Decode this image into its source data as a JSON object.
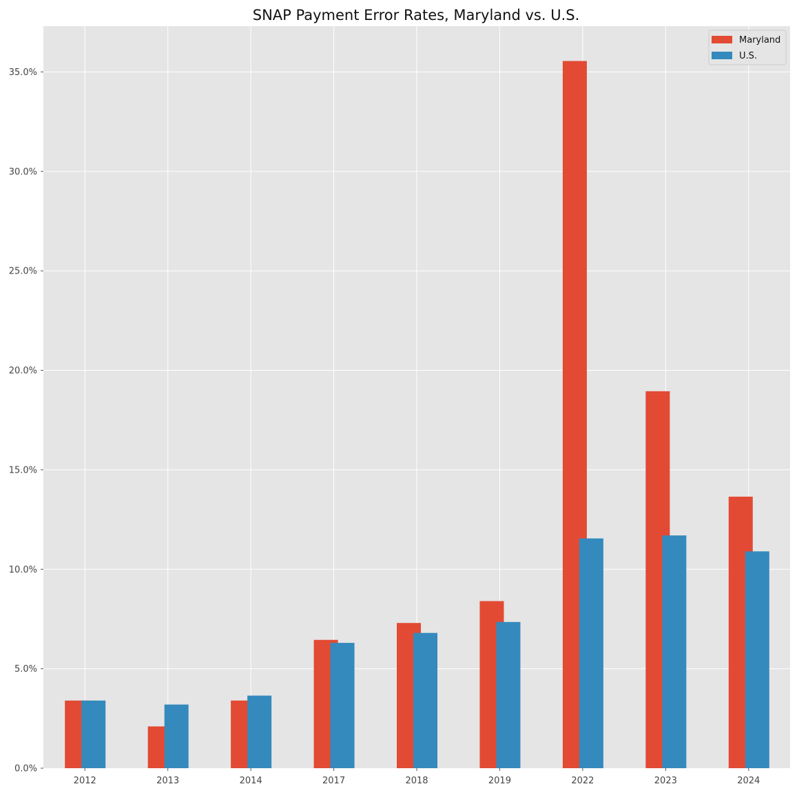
{
  "chart_data": {
    "type": "bar",
    "title": "SNAP Payment Error Rates, Maryland vs. U.S.",
    "xlabel": "",
    "ylabel": "",
    "categories": [
      "2012",
      "2013",
      "2014",
      "2017",
      "2018",
      "2019",
      "2022",
      "2023",
      "2024"
    ],
    "series": [
      {
        "name": "Maryland",
        "color": "#E24A33",
        "values": [
          3.4,
          2.1,
          3.4,
          6.45,
          7.3,
          8.4,
          35.55,
          18.95,
          13.65
        ]
      },
      {
        "name": "U.S.",
        "color": "#348ABD",
        "values": [
          3.4,
          3.2,
          3.65,
          6.3,
          6.8,
          7.35,
          11.55,
          11.7,
          10.9
        ]
      }
    ],
    "ylim": [
      0,
      37.3
    ],
    "yticks": [
      0,
      5,
      10,
      15,
      20,
      25,
      30,
      35
    ],
    "ytick_labels": [
      "0.0%",
      "5.0%",
      "10.0%",
      "15.0%",
      "20.0%",
      "25.0%",
      "30.0%",
      "35.0%"
    ],
    "grid": true,
    "legend_position": "top-right",
    "background_color": "#E5E5E5",
    "grid_color": "#FFFFFF"
  }
}
